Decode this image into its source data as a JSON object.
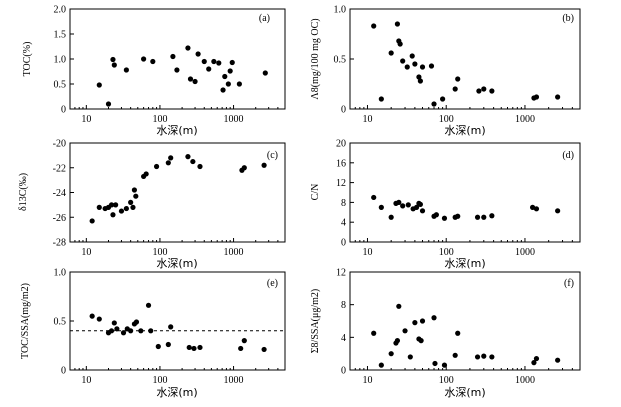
{
  "chart_data": [
    {
      "id": "a",
      "type": "scatter",
      "panel_label": "(a)",
      "xlabel": "水深(m)",
      "ylabel": "TOC(%)",
      "xscale": "log",
      "xlim": [
        6,
        5000
      ],
      "ylim": [
        0,
        2.0
      ],
      "xtick_labels": [
        "10",
        "100",
        "1000"
      ],
      "xtick_values": [
        10,
        100,
        1000
      ],
      "ytick_labels": [
        "0",
        "0.5",
        "1.0",
        "1.5",
        "2.0"
      ],
      "ytick_values": [
        0,
        0.5,
        1.0,
        1.5,
        2.0
      ],
      "points": [
        [
          15,
          0.48
        ],
        [
          20,
          0.1
        ],
        [
          23,
          0.99
        ],
        [
          24,
          0.88
        ],
        [
          35,
          0.78
        ],
        [
          60,
          1.0
        ],
        [
          80,
          0.95
        ],
        [
          150,
          1.05
        ],
        [
          170,
          0.78
        ],
        [
          240,
          1.22
        ],
        [
          260,
          0.6
        ],
        [
          300,
          0.55
        ],
        [
          330,
          1.1
        ],
        [
          400,
          0.95
        ],
        [
          460,
          0.8
        ],
        [
          540,
          0.95
        ],
        [
          630,
          0.92
        ],
        [
          720,
          0.38
        ],
        [
          760,
          0.65
        ],
        [
          850,
          0.5
        ],
        [
          900,
          0.76
        ],
        [
          960,
          0.93
        ],
        [
          1200,
          0.5
        ],
        [
          2700,
          0.72
        ]
      ]
    },
    {
      "id": "b",
      "type": "scatter",
      "panel_label": "(b)",
      "xlabel": "水深(m)",
      "ylabel": "Λ8(mg/100 mg OC)",
      "xscale": "log",
      "xlim": [
        6,
        5000
      ],
      "ylim": [
        0,
        1.0
      ],
      "xtick_labels": [
        "10",
        "100",
        "1000"
      ],
      "xtick_values": [
        10,
        100,
        1000
      ],
      "ytick_labels": [
        "0",
        "0.5",
        "1.0"
      ],
      "ytick_values": [
        0,
        0.5,
        1.0
      ],
      "points": [
        [
          12,
          0.83
        ],
        [
          15,
          0.1
        ],
        [
          20,
          0.56
        ],
        [
          24,
          0.85
        ],
        [
          25,
          0.68
        ],
        [
          26,
          0.65
        ],
        [
          28,
          0.48
        ],
        [
          32,
          0.42
        ],
        [
          37,
          0.53
        ],
        [
          40,
          0.45
        ],
        [
          45,
          0.32
        ],
        [
          47,
          0.28
        ],
        [
          50,
          0.42
        ],
        [
          65,
          0.43
        ],
        [
          70,
          0.05
        ],
        [
          90,
          0.1
        ],
        [
          130,
          0.2
        ],
        [
          140,
          0.3
        ],
        [
          260,
          0.18
        ],
        [
          300,
          0.2
        ],
        [
          380,
          0.18
        ],
        [
          1300,
          0.11
        ],
        [
          1400,
          0.12
        ],
        [
          2600,
          0.12
        ]
      ]
    },
    {
      "id": "c",
      "type": "scatter",
      "panel_label": "(c)",
      "xlabel": "水深(m)",
      "ylabel": "δ13C(‰)",
      "xscale": "log",
      "xlim": [
        6,
        5000
      ],
      "ylim": [
        -28,
        -20
      ],
      "xtick_labels": [
        "10",
        "100",
        "1000"
      ],
      "xtick_values": [
        10,
        100,
        1000
      ],
      "ytick_labels": [
        "-28",
        "-26",
        "-24",
        "-22",
        "-20"
      ],
      "ytick_values": [
        -28,
        -26,
        -24,
        -22,
        -20
      ],
      "points": [
        [
          12,
          -26.3
        ],
        [
          15,
          -25.2
        ],
        [
          18,
          -25.3
        ],
        [
          20,
          -25.2
        ],
        [
          22,
          -25.0
        ],
        [
          23,
          -25.8
        ],
        [
          25,
          -25.0
        ],
        [
          30,
          -25.5
        ],
        [
          35,
          -25.3
        ],
        [
          40,
          -24.8
        ],
        [
          43,
          -25.2
        ],
        [
          45,
          -23.8
        ],
        [
          47,
          -24.3
        ],
        [
          60,
          -22.7
        ],
        [
          65,
          -22.5
        ],
        [
          90,
          -21.9
        ],
        [
          130,
          -21.6
        ],
        [
          140,
          -21.2
        ],
        [
          240,
          -21.1
        ],
        [
          280,
          -21.5
        ],
        [
          350,
          -21.9
        ],
        [
          1300,
          -22.2
        ],
        [
          1400,
          -22.0
        ],
        [
          2600,
          -21.8
        ]
      ]
    },
    {
      "id": "d",
      "type": "scatter",
      "panel_label": "(d)",
      "xlabel": "水深(m)",
      "ylabel": "C/N",
      "xscale": "log",
      "xlim": [
        6,
        5000
      ],
      "ylim": [
        0,
        20
      ],
      "xtick_labels": [
        "10",
        "100",
        "1000"
      ],
      "xtick_values": [
        10,
        100,
        1000
      ],
      "ytick_labels": [
        "0",
        "4",
        "8",
        "12",
        "16",
        "20"
      ],
      "ytick_values": [
        0,
        4,
        8,
        12,
        16,
        20
      ],
      "points": [
        [
          12,
          9.0
        ],
        [
          15,
          7.0
        ],
        [
          20,
          5.0
        ],
        [
          23,
          7.8
        ],
        [
          25,
          8.0
        ],
        [
          28,
          7.3
        ],
        [
          33,
          7.5
        ],
        [
          38,
          6.7
        ],
        [
          42,
          7.0
        ],
        [
          45,
          7.8
        ],
        [
          47,
          7.6
        ],
        [
          50,
          6.3
        ],
        [
          70,
          5.2
        ],
        [
          75,
          5.5
        ],
        [
          95,
          4.8
        ],
        [
          130,
          5.0
        ],
        [
          140,
          5.2
        ],
        [
          250,
          5.0
        ],
        [
          300,
          5.0
        ],
        [
          380,
          5.3
        ],
        [
          1250,
          7.0
        ],
        [
          1400,
          6.7
        ],
        [
          2600,
          6.3
        ]
      ]
    },
    {
      "id": "e",
      "type": "scatter",
      "panel_label": "(e)",
      "xlabel": "水深(m)",
      "ylabel": "TOC/SSA(mg/m2)",
      "xscale": "log",
      "xlim": [
        6,
        5000
      ],
      "ylim": [
        0,
        1.0
      ],
      "xtick_labels": [
        "10",
        "100",
        "1000"
      ],
      "xtick_values": [
        10,
        100,
        1000
      ],
      "ytick_labels": [
        "0",
        "0.5",
        "1.0"
      ],
      "ytick_values": [
        0,
        0.5,
        1.0
      ],
      "reference_lines": [
        {
          "y": 0.4,
          "style": "dashed"
        },
        {
          "y": 1.0,
          "style": "dashed"
        }
      ],
      "points": [
        [
          12,
          0.55
        ],
        [
          15,
          0.52
        ],
        [
          20,
          0.38
        ],
        [
          22,
          0.4
        ],
        [
          24,
          0.48
        ],
        [
          26,
          0.42
        ],
        [
          32,
          0.38
        ],
        [
          36,
          0.42
        ],
        [
          40,
          0.4
        ],
        [
          45,
          0.47
        ],
        [
          48,
          0.49
        ],
        [
          55,
          0.4
        ],
        [
          70,
          0.66
        ],
        [
          75,
          0.4
        ],
        [
          95,
          0.24
        ],
        [
          130,
          0.26
        ],
        [
          140,
          0.44
        ],
        [
          250,
          0.23
        ],
        [
          290,
          0.22
        ],
        [
          350,
          0.23
        ],
        [
          1250,
          0.22
        ],
        [
          1400,
          0.3
        ],
        [
          2600,
          0.21
        ]
      ]
    },
    {
      "id": "f",
      "type": "scatter",
      "panel_label": "(f)",
      "xlabel": "水深(m)",
      "ylabel": "Σ8/SSA(μg/m2)",
      "xscale": "log",
      "xlim": [
        6,
        5000
      ],
      "ylim": [
        0,
        12
      ],
      "xtick_labels": [
        "10",
        "100",
        "1000"
      ],
      "xtick_values": [
        10,
        100,
        1000
      ],
      "ytick_labels": [
        "0",
        "4",
        "8",
        "12"
      ],
      "ytick_values": [
        0,
        4,
        8,
        12
      ],
      "points": [
        [
          12,
          4.5
        ],
        [
          15,
          0.6
        ],
        [
          20,
          2.0
        ],
        [
          23,
          3.3
        ],
        [
          24,
          3.6
        ],
        [
          25,
          7.8
        ],
        [
          30,
          4.8
        ],
        [
          35,
          1.6
        ],
        [
          40,
          5.8
        ],
        [
          45,
          3.8
        ],
        [
          48,
          3.6
        ],
        [
          50,
          6.0
        ],
        [
          70,
          6.4
        ],
        [
          72,
          0.8
        ],
        [
          95,
          0.6
        ],
        [
          130,
          1.8
        ],
        [
          140,
          4.5
        ],
        [
          250,
          1.6
        ],
        [
          300,
          1.7
        ],
        [
          380,
          1.6
        ],
        [
          1300,
          0.9
        ],
        [
          1400,
          1.4
        ],
        [
          2600,
          1.2
        ]
      ]
    }
  ]
}
